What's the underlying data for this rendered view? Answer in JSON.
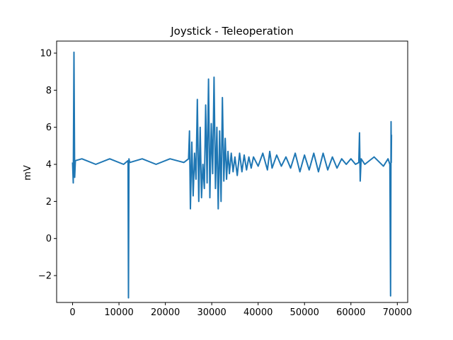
{
  "chart_data": {
    "type": "line",
    "title": "Joystick - Teleoperation",
    "xlabel": "",
    "ylabel": "mV",
    "xlim": [
      -3440,
      72240
    ],
    "ylim": [
      -3.45,
      10.65
    ],
    "xticks": [
      0,
      10000,
      20000,
      30000,
      40000,
      50000,
      60000,
      70000
    ],
    "xtick_labels": [
      "0",
      "10000",
      "20000",
      "30000",
      "40000",
      "50000",
      "60000",
      "70000"
    ],
    "yticks": [
      -2,
      0,
      2,
      4,
      6,
      8,
      10
    ],
    "ytick_labels": [
      "−2",
      "0",
      "2",
      "4",
      "6",
      "8",
      "10"
    ],
    "grid": false,
    "legend": "none",
    "series": [
      {
        "color": "#1f77b4",
        "x": [
          0,
          150,
          300,
          450,
          600,
          2000,
          5000,
          8000,
          11000,
          11950,
          12050,
          12150,
          12300,
          15000,
          18000,
          21000,
          24000,
          25000,
          25200,
          25400,
          25700,
          26000,
          26300,
          26600,
          26900,
          27200,
          27500,
          27800,
          28100,
          28400,
          28700,
          29000,
          29300,
          29600,
          29900,
          30200,
          30500,
          30800,
          31100,
          31400,
          31700,
          32000,
          32300,
          32600,
          32900,
          33200,
          33500,
          33800,
          34200,
          34600,
          35000,
          35500,
          36000,
          36500,
          37000,
          37500,
          38000,
          38500,
          39000,
          40000,
          41000,
          42000,
          42500,
          43000,
          44000,
          45000,
          46000,
          47000,
          48000,
          49000,
          50000,
          51000,
          52000,
          53000,
          54000,
          55000,
          56000,
          57000,
          58000,
          59000,
          60000,
          61000,
          61700,
          61850,
          62000,
          62200,
          63000,
          65000,
          67000,
          68000,
          68400,
          68550,
          68650,
          68700,
          68750
        ],
        "y": [
          4.1,
          3.0,
          10.05,
          3.3,
          4.2,
          4.3,
          4.0,
          4.3,
          4.0,
          4.2,
          -3.2,
          4.3,
          4.1,
          4.3,
          4.0,
          4.3,
          4.1,
          4.3,
          5.8,
          1.6,
          5.2,
          2.3,
          4.6,
          3.2,
          7.5,
          2.0,
          6.0,
          2.2,
          4.0,
          2.7,
          7.2,
          3.0,
          8.6,
          2.2,
          6.2,
          3.5,
          8.7,
          2.7,
          6.0,
          1.6,
          5.8,
          2.0,
          7.6,
          3.1,
          5.4,
          3.2,
          4.7,
          3.5,
          4.6,
          3.6,
          4.4,
          3.4,
          4.6,
          3.6,
          4.5,
          3.7,
          4.4,
          3.8,
          4.4,
          3.9,
          4.6,
          3.7,
          4.7,
          3.8,
          4.5,
          3.9,
          4.4,
          3.8,
          4.6,
          3.6,
          4.5,
          3.7,
          4.6,
          3.6,
          4.6,
          3.7,
          4.4,
          3.8,
          4.3,
          4.0,
          4.3,
          4.0,
          4.1,
          5.7,
          3.1,
          4.3,
          4.0,
          4.4,
          3.9,
          4.3,
          4.0,
          -3.1,
          6.3,
          4.1,
          5.6
        ]
      }
    ]
  }
}
